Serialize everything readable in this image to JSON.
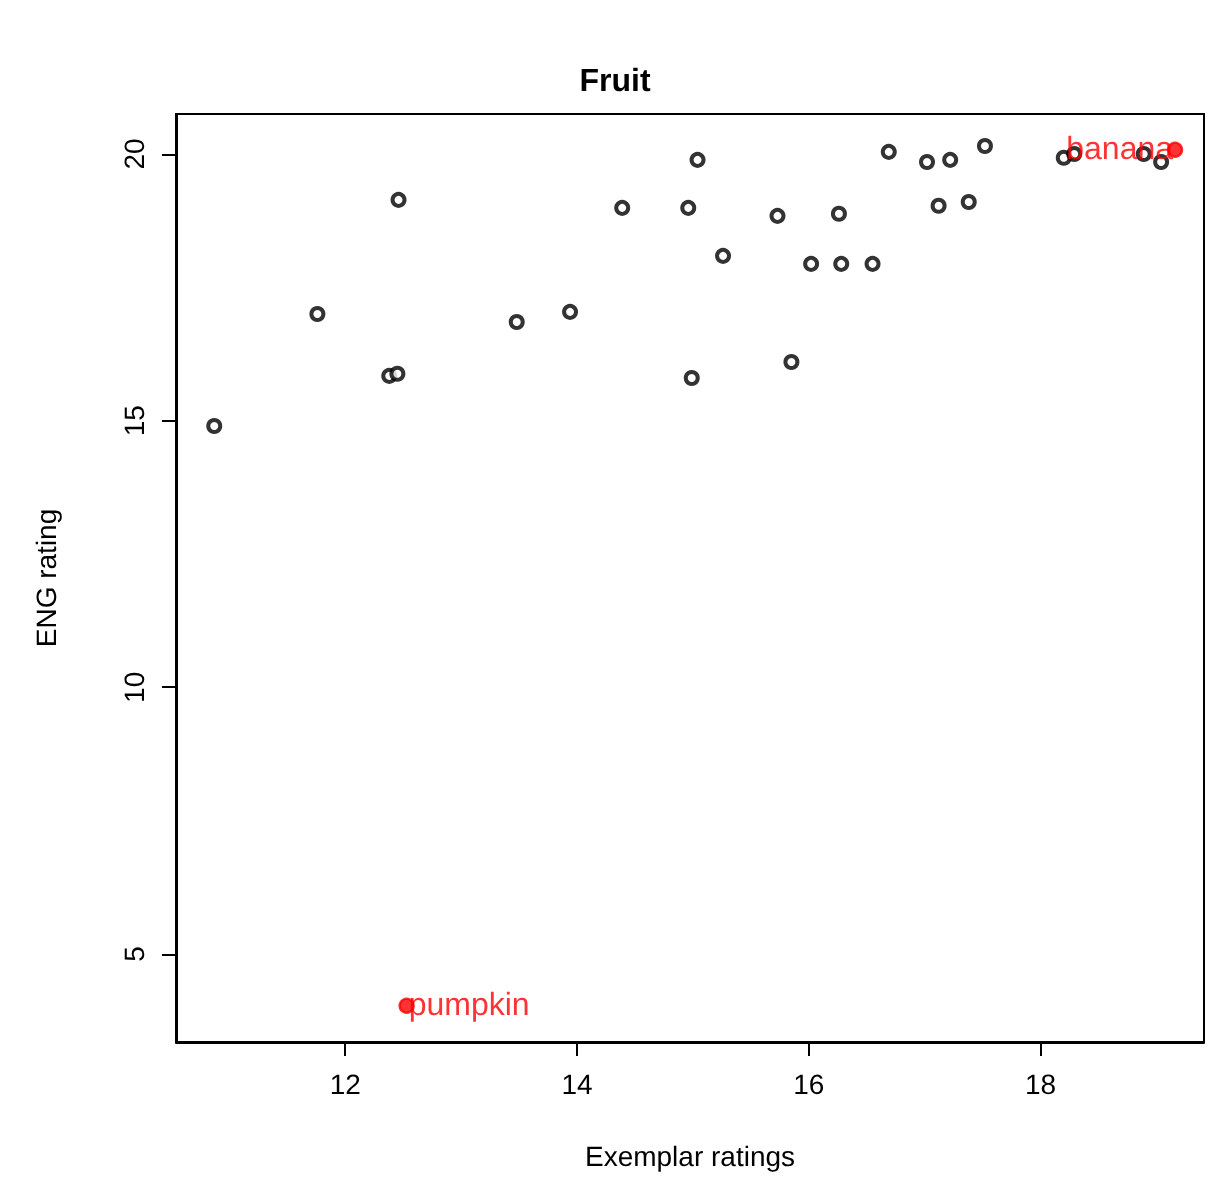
{
  "chart_data": {
    "type": "scatter",
    "title": "Fruit",
    "xlabel": "Exemplar ratings",
    "ylabel": "ENG rating",
    "xlim": [
      10.54,
      19.41
    ],
    "ylim": [
      3.35,
      20.75
    ],
    "xticks": [
      12,
      14,
      16,
      18
    ],
    "yticks": [
      5,
      10,
      15,
      20
    ],
    "grid": false,
    "marker": "circle",
    "series": [
      {
        "color": "#000000",
        "x": [
          10.87,
          11.76,
          12.46,
          12.38,
          12.45,
          13.48,
          13.94,
          14.39,
          14.96,
          14.99,
          15.04,
          15.26,
          15.73,
          15.85,
          16.02,
          16.26,
          16.28,
          16.55,
          16.69,
          17.02,
          17.22,
          17.12,
          17.38,
          17.52,
          18.2,
          18.29,
          18.89,
          19.04
        ],
        "values": [
          14.9,
          17.0,
          19.14,
          15.84,
          15.88,
          16.85,
          17.04,
          18.99,
          18.99,
          15.8,
          19.89,
          18.09,
          18.84,
          16.1,
          17.94,
          18.88,
          17.94,
          17.94,
          20.04,
          19.85,
          19.89,
          19.03,
          19.1,
          20.15,
          19.93,
          20.0,
          20.0,
          19.85
        ]
      },
      {
        "color": "#ff0000",
        "x": [
          19.16,
          12.53
        ],
        "values": [
          20.08,
          4.03
        ]
      }
    ],
    "annotations": [
      {
        "text": "banana",
        "x": 19.16,
        "y": 20.08
      },
      {
        "text": "pumpkin",
        "x": 12.53,
        "y": 4.03
      }
    ]
  }
}
